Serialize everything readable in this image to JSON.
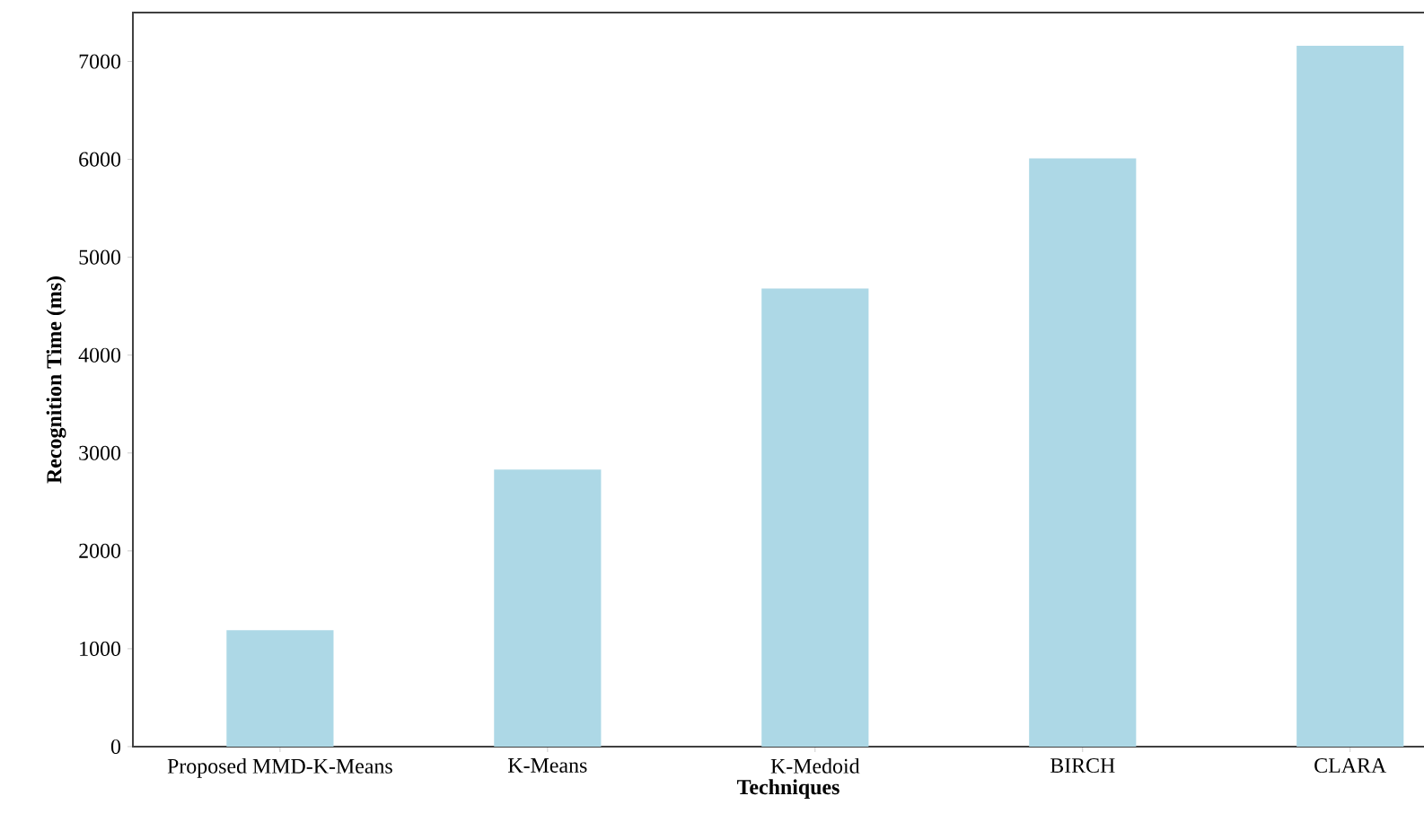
{
  "chart_data": {
    "type": "bar",
    "xlabel": "Techniques",
    "ylabel": "Recognition Time (ms)",
    "categories": [
      "Proposed MMD-K-Means",
      "K-Means",
      "K-Medoid",
      "BIRCH",
      "CLARA"
    ],
    "values": [
      1190,
      2830,
      4680,
      6010,
      7160
    ],
    "color": "#add8e6",
    "ylim": [
      0,
      7500
    ],
    "yticks": [
      0,
      1000,
      2000,
      3000,
      4000,
      5000,
      6000,
      7000
    ],
    "grid": false
  }
}
